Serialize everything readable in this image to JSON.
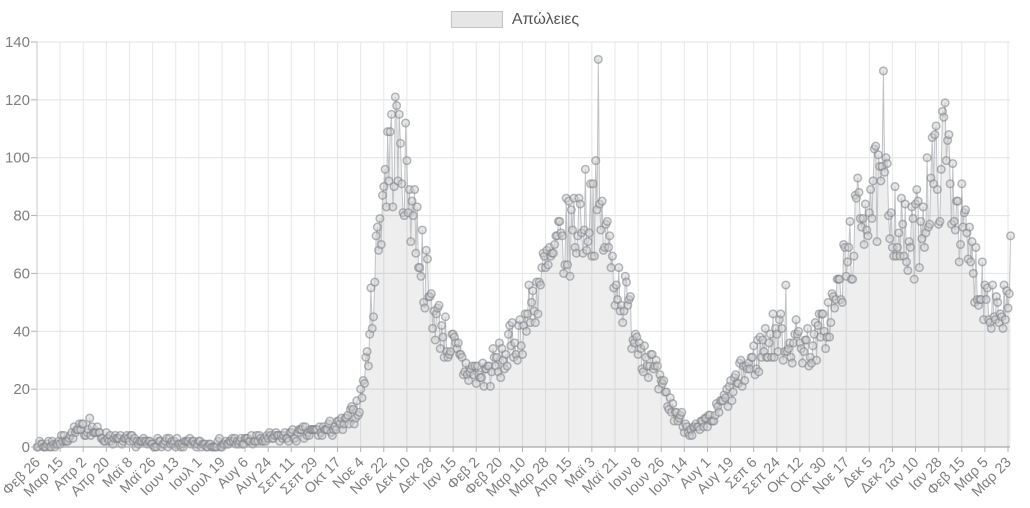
{
  "chart_data": {
    "type": "line",
    "title": "",
    "series_name": "Απώλειες",
    "legend_position": "top-center",
    "grid": true,
    "ylim": [
      0,
      140
    ],
    "y_ticks": [
      0,
      20,
      40,
      60,
      80,
      100,
      120,
      140
    ],
    "x_tick_interval_days": 18,
    "n_points": 759,
    "x_tick_labels": [
      "Φεβ 26",
      "Μαρ 15",
      "Απρ 2",
      "Απρ 20",
      "Μαϊ 8",
      "Μαϊ 26",
      "Ιουν 13",
      "Ιουλ 1",
      "Ιουλ 19",
      "Αυγ 6",
      "Αυγ 24",
      "Σεπ 11",
      "Σεπ 29",
      "Οκτ 17",
      "Νοε 4",
      "Νοε 22",
      "Δεκ 10",
      "Δεκ 28",
      "Ιαν 15",
      "Φεβ 2",
      "Φεβ 20",
      "Μαρ 10",
      "Μαρ 28",
      "Απρ 15",
      "Μαϊ 3",
      "Μαϊ 21",
      "Ιουν 8",
      "Ιουν 26",
      "Ιουλ 14",
      "Αυγ 1",
      "Αυγ 19",
      "Σεπ 6",
      "Σεπ 24",
      "Οκτ 12",
      "Οκτ 30",
      "Νοε 17",
      "Δεκ 5",
      "Δεκ 23",
      "Ιαν 10",
      "Ιαν 28",
      "Φεβ 15",
      "Μαρ 5",
      "Μαρ 23"
    ],
    "envelope_anchors": [
      [
        0,
        0.4
      ],
      [
        6,
        0.6
      ],
      [
        12,
        1
      ],
      [
        18,
        2
      ],
      [
        24,
        3.5
      ],
      [
        30,
        5
      ],
      [
        36,
        6
      ],
      [
        42,
        6
      ],
      [
        48,
        4.5
      ],
      [
        54,
        3.5
      ],
      [
        60,
        2.5
      ],
      [
        66,
        2
      ],
      [
        72,
        2
      ],
      [
        80,
        1.5
      ],
      [
        90,
        1.3
      ],
      [
        100,
        1
      ],
      [
        112,
        1
      ],
      [
        124,
        1
      ],
      [
        136,
        1
      ],
      [
        148,
        1.4
      ],
      [
        160,
        2
      ],
      [
        172,
        2.5
      ],
      [
        180,
        3
      ],
      [
        190,
        3.5
      ],
      [
        198,
        4
      ],
      [
        207,
        4.5
      ],
      [
        216,
        5
      ],
      [
        225,
        6
      ],
      [
        234,
        7
      ],
      [
        240,
        8
      ],
      [
        246,
        11
      ],
      [
        252,
        16
      ],
      [
        257,
        30
      ],
      [
        262,
        55
      ],
      [
        266,
        75
      ],
      [
        270,
        92
      ],
      [
        274,
        100
      ],
      [
        278,
        103
      ],
      [
        282,
        101
      ],
      [
        286,
        95
      ],
      [
        290,
        88
      ],
      [
        294,
        80
      ],
      [
        298,
        70
      ],
      [
        302,
        60
      ],
      [
        306,
        50
      ],
      [
        310,
        45
      ],
      [
        314,
        42
      ],
      [
        318,
        38
      ],
      [
        322,
        35
      ],
      [
        326,
        32
      ],
      [
        332,
        28
      ],
      [
        338,
        26
      ],
      [
        344,
        25
      ],
      [
        350,
        26
      ],
      [
        356,
        28
      ],
      [
        362,
        30
      ],
      [
        368,
        34
      ],
      [
        374,
        38
      ],
      [
        380,
        43
      ],
      [
        386,
        50
      ],
      [
        392,
        57
      ],
      [
        398,
        62
      ],
      [
        404,
        66
      ],
      [
        410,
        70
      ],
      [
        416,
        74
      ],
      [
        422,
        79
      ],
      [
        428,
        82
      ],
      [
        433,
        84
      ],
      [
        438,
        80
      ],
      [
        444,
        70
      ],
      [
        450,
        60
      ],
      [
        456,
        52
      ],
      [
        462,
        45
      ],
      [
        468,
        38
      ],
      [
        474,
        32
      ],
      [
        480,
        26
      ],
      [
        486,
        20
      ],
      [
        492,
        15
      ],
      [
        498,
        11
      ],
      [
        504,
        8
      ],
      [
        510,
        6
      ],
      [
        516,
        6
      ],
      [
        522,
        8
      ],
      [
        528,
        11
      ],
      [
        534,
        15
      ],
      [
        540,
        19
      ],
      [
        546,
        23
      ],
      [
        552,
        27
      ],
      [
        558,
        30
      ],
      [
        564,
        34
      ],
      [
        570,
        37
      ],
      [
        576,
        39
      ],
      [
        582,
        38
      ],
      [
        588,
        36
      ],
      [
        594,
        37
      ],
      [
        600,
        35
      ],
      [
        606,
        36
      ],
      [
        612,
        40
      ],
      [
        618,
        46
      ],
      [
        624,
        53
      ],
      [
        630,
        62
      ],
      [
        634,
        70
      ],
      [
        638,
        76
      ],
      [
        642,
        82
      ],
      [
        646,
        86
      ],
      [
        650,
        88
      ],
      [
        654,
        86
      ],
      [
        658,
        84
      ],
      [
        662,
        86
      ],
      [
        666,
        84
      ],
      [
        670,
        78
      ],
      [
        674,
        71
      ],
      [
        678,
        68
      ],
      [
        682,
        70
      ],
      [
        686,
        76
      ],
      [
        690,
        83
      ],
      [
        694,
        89
      ],
      [
        698,
        93
      ],
      [
        702,
        96
      ],
      [
        706,
        99
      ],
      [
        710,
        97
      ],
      [
        714,
        90
      ],
      [
        718,
        80
      ],
      [
        722,
        72
      ],
      [
        726,
        66
      ],
      [
        730,
        61
      ],
      [
        734,
        58
      ],
      [
        738,
        55
      ],
      [
        742,
        52
      ],
      [
        746,
        49
      ],
      [
        750,
        47
      ],
      [
        754,
        48
      ],
      [
        758,
        50
      ]
    ],
    "outliers": [
      [
        41,
        10
      ],
      [
        279,
        121
      ],
      [
        437,
        134
      ],
      [
        583,
        56
      ],
      [
        659,
        130
      ],
      [
        707,
        119
      ],
      [
        758,
        73
      ]
    ],
    "noise": {
      "abs": 1.4,
      "frac": 0.19,
      "seed": 7
    },
    "colors": {
      "marker_fill": "rgba(205,207,210,0.5)",
      "marker_stroke": "rgba(125,128,132,0.55)",
      "line": "rgba(165,168,172,0.65)",
      "area_fill": "rgba(0,0,0,0.065)",
      "grid_h": "#e3e3e3",
      "grid_v": "#e7e7e7",
      "axis_line": "#a6a6a6",
      "tick_stub": "#b3b3b3",
      "tick_label": "#7f7f7f",
      "legend_swatch_fill": "#e6e6e6",
      "legend_swatch_border": "#c2c2c2",
      "legend_text": "#565656"
    }
  }
}
